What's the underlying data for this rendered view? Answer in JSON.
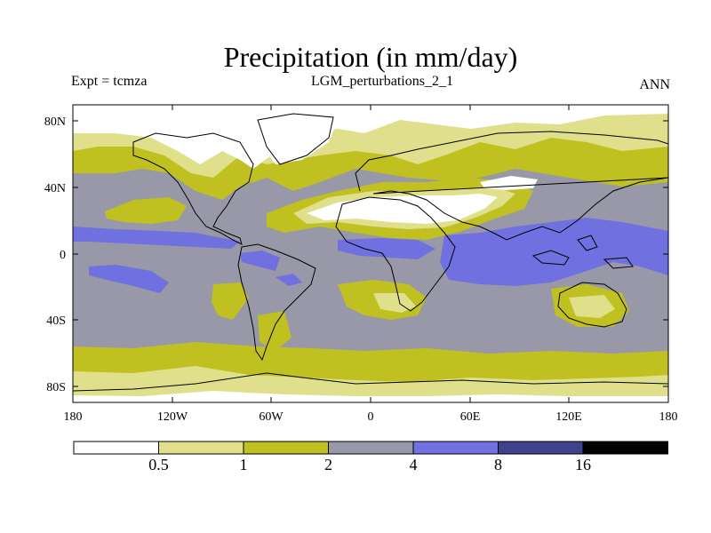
{
  "header": {
    "title": "Precipitation (in mm/day)",
    "experiment": "Expt = tcmza",
    "run_name": "LGM_perturbations_2_1",
    "period": "ANN"
  },
  "axes": {
    "lat_ticks": [
      "80N",
      "40N",
      "0",
      "40S",
      "80S"
    ],
    "lon_ticks": [
      "180",
      "120W",
      "60W",
      "0",
      "60E",
      "120E",
      "180"
    ]
  },
  "colorbar": {
    "colors": [
      "#ffffff",
      "#e0e08c",
      "#c0c020",
      "#9898a8",
      "#7070e0",
      "#40408c",
      "#000000"
    ],
    "labels": [
      "0.5",
      "1",
      "2",
      "4",
      "8",
      "16"
    ]
  }
}
